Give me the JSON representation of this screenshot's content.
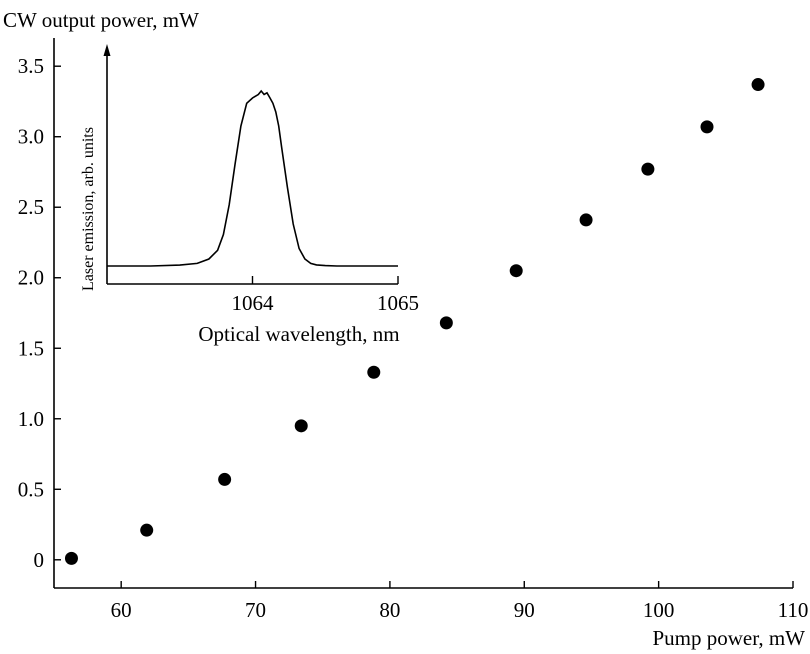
{
  "chart_data": [
    {
      "type": "scatter",
      "xlabel": "Pump power, mW",
      "ylabel": "CW output power, mW",
      "xlim": [
        55,
        110
      ],
      "ylim": [
        -0.2,
        3.7
      ],
      "xticks": [
        "60",
        "70",
        "80",
        "90",
        "100",
        "110"
      ],
      "yticks": [
        "0",
        "0.5",
        "1.0",
        "1.5",
        "2.0",
        "2.5",
        "3.0",
        "3.5"
      ],
      "xtick_values": [
        60,
        70,
        80,
        90,
        100,
        110
      ],
      "ytick_values": [
        0,
        0.5,
        1.0,
        1.5,
        2.0,
        2.5,
        3.0,
        3.5
      ],
      "series": [
        {
          "x": [
            56.3,
            61.9,
            67.7,
            73.4,
            78.8,
            84.2,
            89.4,
            94.6,
            99.2,
            103.6,
            107.4
          ],
          "y": [
            0.01,
            0.21,
            0.57,
            0.95,
            1.33,
            1.68,
            2.05,
            2.41,
            2.77,
            3.07,
            3.37
          ]
        }
      ],
      "grid": false,
      "legend": "none"
    },
    {
      "type": "line",
      "xlabel": "Optical wavelength, nm",
      "ylabel": "Laser emission, arb. units",
      "xlim": [
        1063.0,
        1065.0
      ],
      "ylim": [
        0,
        1.12
      ],
      "xticks": [
        "1064",
        "1065"
      ],
      "xtick_values": [
        1064,
        1065
      ],
      "series": [
        {
          "x": [
            1063.0,
            1063.3,
            1063.5,
            1063.62,
            1063.7,
            1063.76,
            1063.8,
            1063.84,
            1063.88,
            1063.92,
            1063.96,
            1064.0,
            1064.04,
            1064.06,
            1064.08,
            1064.1,
            1064.12,
            1064.14,
            1064.16,
            1064.18,
            1064.2,
            1064.24,
            1064.28,
            1064.32,
            1064.36,
            1064.4,
            1064.44,
            1064.5,
            1064.58,
            1064.7,
            1064.85,
            1065.0
          ],
          "y": [
            0.0,
            0.0,
            0.005,
            0.015,
            0.04,
            0.09,
            0.18,
            0.35,
            0.58,
            0.8,
            0.93,
            0.96,
            0.98,
            1.0,
            0.98,
            0.99,
            0.96,
            0.93,
            0.88,
            0.8,
            0.68,
            0.45,
            0.24,
            0.1,
            0.04,
            0.015,
            0.006,
            0.002,
            0.0,
            0.0,
            0.0,
            0.0
          ]
        }
      ]
    }
  ]
}
